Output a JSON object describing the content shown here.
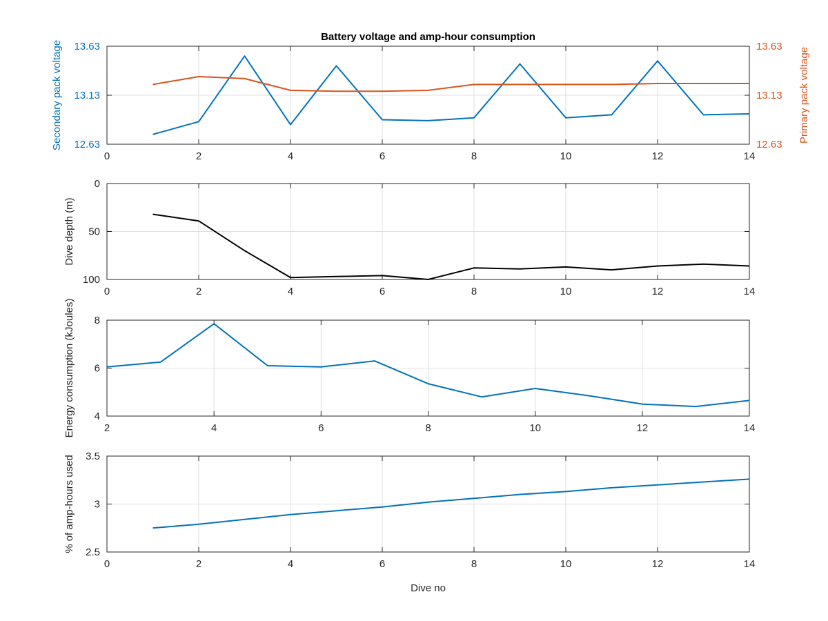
{
  "chart_data": [
    {
      "type": "line",
      "title": "Battery voltage and amp-hour consumption",
      "xlabel": "",
      "ylabel": "Secondary pack voltage",
      "ylabel_right": "Primary pack voltage",
      "xlim": [
        0,
        14
      ],
      "ylim": [
        12.63,
        13.63
      ],
      "ylim_right": [
        12.63,
        13.63
      ],
      "xticks": [
        "0",
        "2",
        "4",
        "6",
        "8",
        "10",
        "12",
        "14"
      ],
      "yticks": [
        "12.63",
        "13.13",
        "13.63"
      ],
      "yticks_right": [
        "12.63",
        "13.13",
        "13.63"
      ],
      "grid": true,
      "colors": {
        "left": "#0072BD",
        "right": "#D95319"
      },
      "series": [
        {
          "axis": "left",
          "color": "#0072BD",
          "x": [
            1,
            2,
            3,
            4,
            5,
            6,
            7,
            8,
            9,
            10,
            11,
            12,
            13,
            14
          ],
          "y": [
            12.73,
            12.86,
            13.53,
            12.83,
            13.43,
            12.88,
            12.87,
            12.9,
            13.45,
            12.9,
            12.93,
            13.48,
            12.93,
            12.94
          ]
        },
        {
          "axis": "right",
          "color": "#D95319",
          "x": [
            1,
            2,
            3,
            4,
            5,
            6,
            7,
            8,
            9,
            10,
            11,
            12,
            13,
            14
          ],
          "y": [
            13.24,
            13.32,
            13.3,
            13.18,
            13.17,
            13.17,
            13.18,
            13.24,
            13.24,
            13.24,
            13.24,
            13.25,
            13.25,
            13.25
          ]
        }
      ]
    },
    {
      "type": "line",
      "xlabel": "",
      "ylabel": "Dive depth (m)",
      "xlim": [
        0,
        14
      ],
      "ylim": [
        0,
        100
      ],
      "y_reversed": true,
      "xticks": [
        "0",
        "2",
        "4",
        "6",
        "8",
        "10",
        "12",
        "14"
      ],
      "yticks": [
        "0",
        "50",
        "100"
      ],
      "grid": true,
      "series": [
        {
          "color": "#000000",
          "x": [
            1,
            2,
            3,
            4,
            5,
            6,
            7,
            8,
            9,
            10,
            11,
            12,
            13,
            14
          ],
          "y": [
            32,
            39,
            70,
            98,
            97,
            96,
            100,
            88,
            89,
            87,
            90,
            86,
            84,
            86
          ]
        }
      ]
    },
    {
      "type": "line",
      "xlabel": "",
      "ylabel": "Energy consumption (kJoules)",
      "xlim": [
        2,
        14
      ],
      "ylim": [
        4,
        8
      ],
      "xticks": [
        "2",
        "4",
        "6",
        "8",
        "10",
        "12",
        "14"
      ],
      "yticks": [
        "4",
        "6",
        "8"
      ],
      "grid": true,
      "series": [
        {
          "color": "#0072BD",
          "x": [
            2,
            3,
            4,
            5,
            6,
            7,
            8,
            9,
            10,
            11,
            12,
            13,
            14
          ],
          "y": [
            6.05,
            6.25,
            7.85,
            6.1,
            6.05,
            6.3,
            5.35,
            4.8,
            5.15,
            4.85,
            4.5,
            4.4,
            4.65
          ]
        }
      ]
    },
    {
      "type": "line",
      "xlabel": "Dive no",
      "ylabel": "% of amp-hours used",
      "xlim": [
        0,
        14
      ],
      "ylim": [
        2.5,
        3.5
      ],
      "xticks": [
        "0",
        "2",
        "4",
        "6",
        "8",
        "10",
        "12",
        "14"
      ],
      "yticks": [
        "2.5",
        "3",
        "3.5"
      ],
      "grid": true,
      "series": [
        {
          "color": "#0072BD",
          "x": [
            1,
            2,
            3,
            4,
            5,
            6,
            7,
            8,
            9,
            10,
            11,
            12,
            13,
            14
          ],
          "y": [
            2.75,
            2.79,
            2.84,
            2.89,
            2.93,
            2.97,
            3.02,
            3.06,
            3.1,
            3.13,
            3.17,
            3.2,
            3.23,
            3.26
          ]
        }
      ]
    }
  ]
}
